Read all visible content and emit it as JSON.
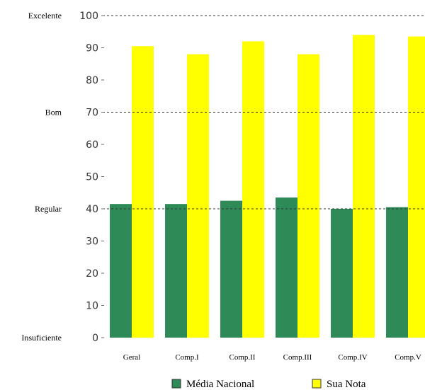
{
  "chart_data": {
    "type": "bar",
    "categories": [
      "Geral",
      "Comp.I",
      "Comp.II",
      "Comp.III",
      "Comp.IV",
      "Comp.V"
    ],
    "series": [
      {
        "name": "Média Nacional",
        "values": [
          41.5,
          41.5,
          42.5,
          43.5,
          40,
          40.5
        ],
        "color": "#2e8b57"
      },
      {
        "name": "Sua Nota",
        "values": [
          90.5,
          88,
          92,
          88,
          94,
          93.5
        ],
        "color": "#ffff00"
      }
    ],
    "ylim": [
      0,
      100
    ],
    "yticks": [
      0,
      10,
      20,
      30,
      40,
      50,
      60,
      70,
      80,
      90,
      100
    ],
    "reference_lines": [
      {
        "label": "Excelente",
        "value": 100
      },
      {
        "label": "Bom",
        "value": 70
      },
      {
        "label": "Regular",
        "value": 40
      },
      {
        "label": "Insuficiente",
        "value": 0
      }
    ],
    "grid": false,
    "legend_position": "bottom"
  }
}
